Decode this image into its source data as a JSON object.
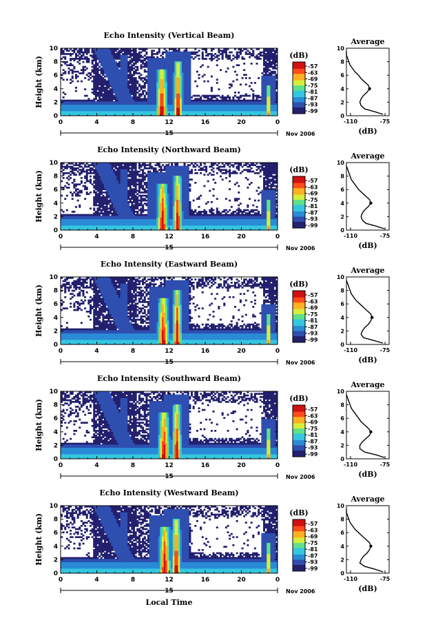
{
  "figure": {
    "xlabel": "Local Time",
    "date_label": "Nov 2006",
    "day_label": "15",
    "cbar_unit": "(dB)",
    "avg_title": "Average",
    "avg_xlabel": "(dB)"
  },
  "chart_data": [
    {
      "type": "heatmap",
      "title": "Echo Intensity (Vertical Beam)",
      "ylabel": "Height (km)",
      "xlim": [
        0,
        24
      ],
      "ylim": [
        0,
        10
      ],
      "xticks": [
        "0",
        "4",
        "8",
        "12",
        "16",
        "20",
        "0"
      ],
      "yticks": [
        "0",
        "2",
        "4",
        "6",
        "8",
        "10"
      ],
      "colorbar_ticks": [
        "-57",
        "-63",
        "-69",
        "-75",
        "-81",
        "-87",
        "-93",
        "-99"
      ],
      "colors": [
        "#23206e",
        "#2f4fb0",
        "#2a8bd6",
        "#35c6e0",
        "#5fe08a",
        "#d6ee3a",
        "#ffb020",
        "#ff4a1a",
        "#d01010"
      ],
      "average_profile": {
        "title": "Average",
        "xlabel": "(dB)",
        "xlim": [
          -110,
          -75
        ],
        "xticks": [
          "-110",
          "-75"
        ],
        "height": [
          0.2,
          0.6,
          1.0,
          1.5,
          2.0,
          2.5,
          3.0,
          3.5,
          4.0,
          4.5,
          5.0,
          5.5,
          6.0,
          6.5,
          7.0,
          7.5,
          8.0,
          8.5,
          9.0,
          9.5
        ],
        "value": [
          -80,
          -87,
          -95,
          -98,
          -99,
          -98,
          -96,
          -93,
          -91,
          -92,
          -95,
          -98,
          -100,
          -103,
          -105,
          -107,
          -108,
          -109,
          -110,
          -110
        ]
      }
    },
    {
      "type": "heatmap",
      "title": "Echo Intensity (Northward Beam)",
      "ylabel": "Height (km)",
      "xlim": [
        0,
        24
      ],
      "ylim": [
        0,
        10
      ],
      "xticks": [
        "0",
        "4",
        "8",
        "12",
        "16",
        "20",
        "0"
      ],
      "yticks": [
        "0",
        "2",
        "4",
        "6",
        "8",
        "10"
      ],
      "colorbar_ticks": [
        "-57",
        "-63",
        "-69",
        "-75",
        "-81",
        "-87",
        "-93",
        "-99"
      ],
      "colors": [
        "#23206e",
        "#2f4fb0",
        "#2a8bd6",
        "#35c6e0",
        "#5fe08a",
        "#d6ee3a",
        "#ffb020",
        "#ff4a1a",
        "#d01010"
      ],
      "average_profile": {
        "title": "Average",
        "xlabel": "(dB)",
        "xlim": [
          -110,
          -75
        ],
        "xticks": [
          "-110",
          "-75"
        ],
        "height": [
          0.2,
          0.6,
          1.0,
          1.5,
          2.0,
          2.5,
          3.0,
          3.5,
          4.0,
          4.5,
          5.0,
          5.5,
          6.0,
          6.5,
          7.0,
          7.5,
          8.0,
          8.5,
          9.0,
          9.5
        ],
        "value": [
          -79,
          -86,
          -94,
          -97,
          -98,
          -97,
          -95,
          -92,
          -90,
          -91,
          -94,
          -97,
          -100,
          -102,
          -104,
          -106,
          -107,
          -108,
          -109,
          -110
        ]
      }
    },
    {
      "type": "heatmap",
      "title": "Echo Intensity (Eastward Beam)",
      "ylabel": "Height (km)",
      "xlim": [
        0,
        24
      ],
      "ylim": [
        0,
        10
      ],
      "xticks": [
        "0",
        "4",
        "8",
        "12",
        "16",
        "20",
        "0"
      ],
      "yticks": [
        "0",
        "2",
        "4",
        "6",
        "8",
        "10"
      ],
      "colorbar_ticks": [
        "-57",
        "-63",
        "-69",
        "-75",
        "-81",
        "-87",
        "-93",
        "-99"
      ],
      "colors": [
        "#23206e",
        "#2f4fb0",
        "#2a8bd6",
        "#35c6e0",
        "#5fe08a",
        "#d6ee3a",
        "#ffb020",
        "#ff4a1a",
        "#d01010"
      ],
      "average_profile": {
        "title": "Average",
        "xlabel": "(dB)",
        "xlim": [
          -110,
          -75
        ],
        "xticks": [
          "-110",
          "-75"
        ],
        "height": [
          0.2,
          0.6,
          1.0,
          1.5,
          2.0,
          2.5,
          3.0,
          3.5,
          4.0,
          4.5,
          5.0,
          5.5,
          6.0,
          6.5,
          7.0,
          7.5,
          8.0,
          8.5,
          9.0,
          9.5
        ],
        "value": [
          -80,
          -88,
          -96,
          -98,
          -97,
          -95,
          -92,
          -90,
          -89,
          -90,
          -93,
          -96,
          -99,
          -102,
          -104,
          -106,
          -107,
          -108,
          -109,
          -110
        ]
      }
    },
    {
      "type": "heatmap",
      "title": "Echo Intensity (Southward Beam)",
      "ylabel": "Height (km)",
      "xlim": [
        0,
        24
      ],
      "ylim": [
        0,
        10
      ],
      "xticks": [
        "0",
        "4",
        "8",
        "12",
        "16",
        "20",
        "0"
      ],
      "yticks": [
        "0",
        "2",
        "4",
        "6",
        "8",
        "10"
      ],
      "colorbar_ticks": [
        "-57",
        "-63",
        "-69",
        "-75",
        "-81",
        "-87",
        "-93",
        "-99"
      ],
      "colors": [
        "#23206e",
        "#2f4fb0",
        "#2a8bd6",
        "#35c6e0",
        "#5fe08a",
        "#d6ee3a",
        "#ffb020",
        "#ff4a1a",
        "#d01010"
      ],
      "average_profile": {
        "title": "Average",
        "xlabel": "(dB)",
        "xlim": [
          -110,
          -75
        ],
        "xticks": [
          "-110",
          "-75"
        ],
        "height": [
          0.2,
          0.6,
          1.0,
          1.5,
          2.0,
          2.5,
          3.0,
          3.5,
          4.0,
          4.5,
          5.0,
          5.5,
          6.0,
          6.5,
          7.0,
          7.5,
          8.0,
          8.5,
          9.0,
          9.5
        ],
        "value": [
          -79,
          -86,
          -95,
          -99,
          -99,
          -97,
          -94,
          -91,
          -90,
          -92,
          -95,
          -98,
          -100,
          -102,
          -104,
          -106,
          -107,
          -108,
          -109,
          -110
        ]
      }
    },
    {
      "type": "heatmap",
      "title": "Echo Intensity (Westward Beam)",
      "ylabel": "Height (km)",
      "xlim": [
        0,
        24
      ],
      "ylim": [
        0,
        10
      ],
      "xticks": [
        "0",
        "4",
        "8",
        "12",
        "16",
        "20",
        "0"
      ],
      "yticks": [
        "0",
        "2",
        "4",
        "6",
        "8",
        "10"
      ],
      "colorbar_ticks": [
        "-57",
        "-63",
        "-69",
        "-75",
        "-81",
        "-87",
        "-93",
        "-99"
      ],
      "colors": [
        "#23206e",
        "#2f4fb0",
        "#2a8bd6",
        "#35c6e0",
        "#5fe08a",
        "#d6ee3a",
        "#ffb020",
        "#ff4a1a",
        "#d01010"
      ],
      "average_profile": {
        "title": "Average",
        "xlabel": "(dB)",
        "xlim": [
          -110,
          -75
        ],
        "xticks": [
          "-110",
          "-75"
        ],
        "height": [
          0.2,
          0.6,
          1.0,
          1.5,
          2.0,
          2.5,
          3.0,
          3.5,
          4.0,
          4.5,
          5.0,
          5.5,
          6.0,
          6.5,
          7.0,
          7.5,
          8.0,
          8.5,
          9.0,
          9.5
        ],
        "value": [
          -80,
          -87,
          -95,
          -99,
          -98,
          -96,
          -93,
          -91,
          -90,
          -91,
          -94,
          -97,
          -100,
          -103,
          -105,
          -107,
          -108,
          -109,
          -110,
          -110
        ]
      }
    }
  ]
}
